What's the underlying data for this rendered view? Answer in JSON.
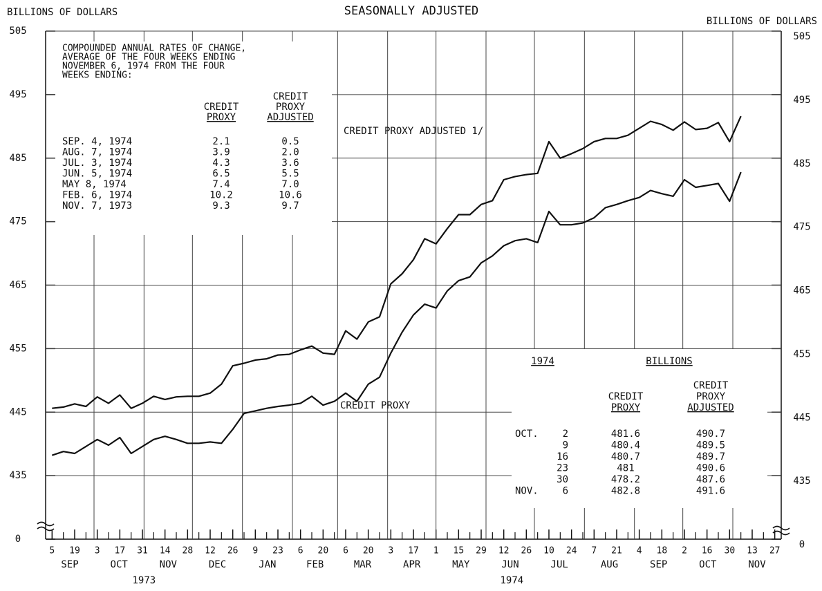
{
  "chart_data": {
    "type": "line",
    "title": "SEASONALLY ADJUSTED",
    "ylabel": "BILLIONS OF DOLLARS",
    "ylim": [
      0,
      505
    ],
    "ybreak": [
      0,
      425
    ],
    "yticks": [
      0,
      435,
      445,
      455,
      465,
      475,
      485,
      495,
      505
    ],
    "grid": true,
    "xlim": [
      "1973-09-01",
      "1974-12-01"
    ],
    "x": [
      "1973-09-05",
      "1973-09-12",
      "1973-09-19",
      "1973-09-26",
      "1973-10-03",
      "1973-10-10",
      "1973-10-17",
      "1973-10-24",
      "1973-10-31",
      "1973-11-07",
      "1973-11-14",
      "1973-11-21",
      "1973-11-28",
      "1973-12-05",
      "1973-12-12",
      "1973-12-19",
      "1973-12-26",
      "1974-01-02",
      "1974-01-09",
      "1974-01-16",
      "1974-01-23",
      "1974-01-30",
      "1974-02-06",
      "1974-02-13",
      "1974-02-20",
      "1974-02-27",
      "1974-03-06",
      "1974-03-13",
      "1974-03-20",
      "1974-03-27",
      "1974-04-03",
      "1974-04-10",
      "1974-04-17",
      "1974-04-24",
      "1974-05-01",
      "1974-05-08",
      "1974-05-15",
      "1974-05-22",
      "1974-05-29",
      "1974-06-05",
      "1974-06-12",
      "1974-06-19",
      "1974-06-26",
      "1974-07-03",
      "1974-07-10",
      "1974-07-17",
      "1974-07-24",
      "1974-07-31",
      "1974-08-07",
      "1974-08-14",
      "1974-08-21",
      "1974-08-28",
      "1974-09-04",
      "1974-09-11",
      "1974-09-18",
      "1974-09-25",
      "1974-10-02",
      "1974-10-09",
      "1974-10-16",
      "1974-10-23",
      "1974-10-30",
      "1974-11-06"
    ],
    "series": [
      {
        "name": "CREDIT PROXY",
        "color": "#111111",
        "values": [
          438.2,
          438.8,
          438.5,
          439.6,
          440.7,
          439.8,
          441.0,
          438.5,
          439.6,
          440.7,
          441.2,
          440.7,
          440.1,
          440.1,
          440.3,
          440.1,
          442.3,
          444.8,
          445.2,
          445.6,
          445.9,
          446.1,
          446.4,
          447.5,
          446.1,
          446.7,
          448.0,
          446.7,
          449.4,
          450.5,
          454.3,
          457.6,
          460.3,
          462.0,
          461.4,
          464.1,
          465.7,
          466.3,
          468.5,
          469.6,
          471.2,
          472.0,
          472.3,
          471.7,
          476.6,
          474.5,
          474.5,
          474.8,
          475.6,
          477.2,
          477.7,
          478.3,
          478.8,
          479.9,
          479.4,
          479.0,
          481.6,
          480.4,
          480.7,
          481.0,
          478.2,
          482.8
        ]
      },
      {
        "name": "CREDIT PROXY ADJUSTED 1/",
        "color": "#111111",
        "values": [
          445.6,
          445.8,
          446.3,
          445.9,
          447.4,
          446.4,
          447.7,
          445.6,
          446.4,
          447.5,
          447.0,
          447.4,
          447.5,
          447.5,
          448.0,
          449.4,
          452.3,
          452.7,
          453.2,
          453.4,
          454.0,
          454.1,
          454.8,
          455.4,
          454.3,
          454.1,
          457.8,
          456.5,
          459.2,
          460.0,
          465.2,
          466.8,
          469.0,
          472.3,
          471.5,
          473.9,
          476.1,
          476.1,
          477.7,
          478.3,
          481.6,
          482.1,
          482.4,
          482.6,
          487.6,
          485.0,
          485.7,
          486.5,
          487.6,
          488.1,
          488.1,
          488.6,
          489.7,
          490.8,
          490.3,
          489.4,
          490.7,
          489.5,
          489.7,
          490.6,
          487.6,
          491.6
        ]
      }
    ],
    "xticks": [
      {
        "value": "1973-09-05",
        "label": "5"
      },
      {
        "value": "1973-09-19",
        "label": "19"
      },
      {
        "value": "1973-10-03",
        "label": "3"
      },
      {
        "value": "1973-10-17",
        "label": "17"
      },
      {
        "value": "1973-10-31",
        "label": "31"
      },
      {
        "value": "1973-11-14",
        "label": "14"
      },
      {
        "value": "1973-11-28",
        "label": "28"
      },
      {
        "value": "1973-12-12",
        "label": "12"
      },
      {
        "value": "1973-12-26",
        "label": "26"
      },
      {
        "value": "1974-01-09",
        "label": "9"
      },
      {
        "value": "1974-01-23",
        "label": "23"
      },
      {
        "value": "1974-02-06",
        "label": "6"
      },
      {
        "value": "1974-02-20",
        "label": "20"
      },
      {
        "value": "1974-03-06",
        "label": "6"
      },
      {
        "value": "1974-03-20",
        "label": "20"
      },
      {
        "value": "1974-04-03",
        "label": "3"
      },
      {
        "value": "1974-04-17",
        "label": "17"
      },
      {
        "value": "1974-05-01",
        "label": "1"
      },
      {
        "value": "1974-05-15",
        "label": "15"
      },
      {
        "value": "1974-05-29",
        "label": "29"
      },
      {
        "value": "1974-06-12",
        "label": "12"
      },
      {
        "value": "1974-06-26",
        "label": "26"
      },
      {
        "value": "1974-07-10",
        "label": "10"
      },
      {
        "value": "1974-07-24",
        "label": "24"
      },
      {
        "value": "1974-08-07",
        "label": "7"
      },
      {
        "value": "1974-08-21",
        "label": "21"
      },
      {
        "value": "1974-09-04",
        "label": "4"
      },
      {
        "value": "1974-09-18",
        "label": "18"
      },
      {
        "value": "1974-10-02",
        "label": "2"
      },
      {
        "value": "1974-10-16",
        "label": "16"
      },
      {
        "value": "1974-10-30",
        "label": "30"
      },
      {
        "value": "1974-11-13",
        "label": "13"
      },
      {
        "value": "1974-11-27",
        "label": "27"
      }
    ],
    "xminorticks": [
      "1973-09-12",
      "1973-09-26",
      "1973-10-10",
      "1973-10-24",
      "1973-11-07",
      "1973-11-21",
      "1973-12-05",
      "1973-12-19",
      "1974-01-02",
      "1974-01-16",
      "1974-01-30",
      "1974-02-13",
      "1974-02-27",
      "1974-03-13",
      "1974-03-27",
      "1974-04-10",
      "1974-04-24",
      "1974-05-08",
      "1974-05-22",
      "1974-06-05",
      "1974-06-19",
      "1974-07-03",
      "1974-07-17",
      "1974-07-31",
      "1974-08-14",
      "1974-08-28",
      "1974-09-11",
      "1974-09-25",
      "1974-10-09",
      "1974-10-23",
      "1974-11-06",
      "1974-11-20"
    ],
    "months": [
      {
        "value": "1973-09",
        "label": "SEP"
      },
      {
        "value": "1973-10",
        "label": "OCT"
      },
      {
        "value": "1973-11",
        "label": "NOV"
      },
      {
        "value": "1973-12",
        "label": "DEC"
      },
      {
        "value": "1974-01",
        "label": "JAN"
      },
      {
        "value": "1974-02",
        "label": "FEB"
      },
      {
        "value": "1974-03",
        "label": "MAR"
      },
      {
        "value": "1974-04",
        "label": "APR"
      },
      {
        "value": "1974-05",
        "label": "MAY"
      },
      {
        "value": "1974-06",
        "label": "JUN"
      },
      {
        "value": "1974-07",
        "label": "JUL"
      },
      {
        "value": "1974-08",
        "label": "AUG"
      },
      {
        "value": "1974-09",
        "label": "SEP"
      },
      {
        "value": "1974-10",
        "label": "OCT"
      },
      {
        "value": "1974-11",
        "label": "NOV"
      }
    ],
    "years": [
      {
        "value": "1973",
        "label": "1973"
      },
      {
        "value": "1974",
        "label": "1974"
      }
    ],
    "rates_table": {
      "title": [
        "COMPOUNDED ANNUAL RATES OF CHANGE,",
        "AVERAGE OF THE FOUR WEEKS ENDING",
        "NOVEMBER 6, 1974 FROM THE FOUR",
        "WEEKS ENDING:"
      ],
      "columns": [
        [
          "CREDIT",
          "PROXY"
        ],
        [
          "CREDIT",
          "PROXY",
          "ADJUSTED"
        ]
      ],
      "rows": [
        {
          "date": "SEP.  4, 1974",
          "proxy": "2.1",
          "adjusted": "0.5"
        },
        {
          "date": "AUG.  7, 1974",
          "proxy": "3.9",
          "adjusted": "2.0"
        },
        {
          "date": "JUL.  3, 1974",
          "proxy": "4.3",
          "adjusted": "3.6"
        },
        {
          "date": "JUN.  5, 1974",
          "proxy": "6.5",
          "adjusted": "5.5"
        },
        {
          "date": "MAY   8, 1974",
          "proxy": "7.4",
          "adjusted": "7.0"
        },
        {
          "date": "FEB.  6, 1974",
          "proxy": "10.2",
          "adjusted": "10.6"
        },
        {
          "date": "NOV.  7, 1973",
          "proxy": "9.3",
          "adjusted": "9.7"
        }
      ]
    },
    "latest_table": {
      "year": "1974",
      "heading": "BILLIONS",
      "columns": [
        [
          "CREDIT",
          "PROXY"
        ],
        [
          "CREDIT",
          "PROXY",
          "ADJUSTED"
        ]
      ],
      "rows": [
        {
          "month": "OCT.",
          "day": "2",
          "index": 56
        },
        {
          "day": "9",
          "index": 57
        },
        {
          "day": "16",
          "index": 58
        },
        {
          "day": "23",
          "index": 59
        },
        {
          "day": "30",
          "index": 60
        },
        {
          "month": "NOV.",
          "day": "6",
          "index": 61
        }
      ]
    }
  }
}
